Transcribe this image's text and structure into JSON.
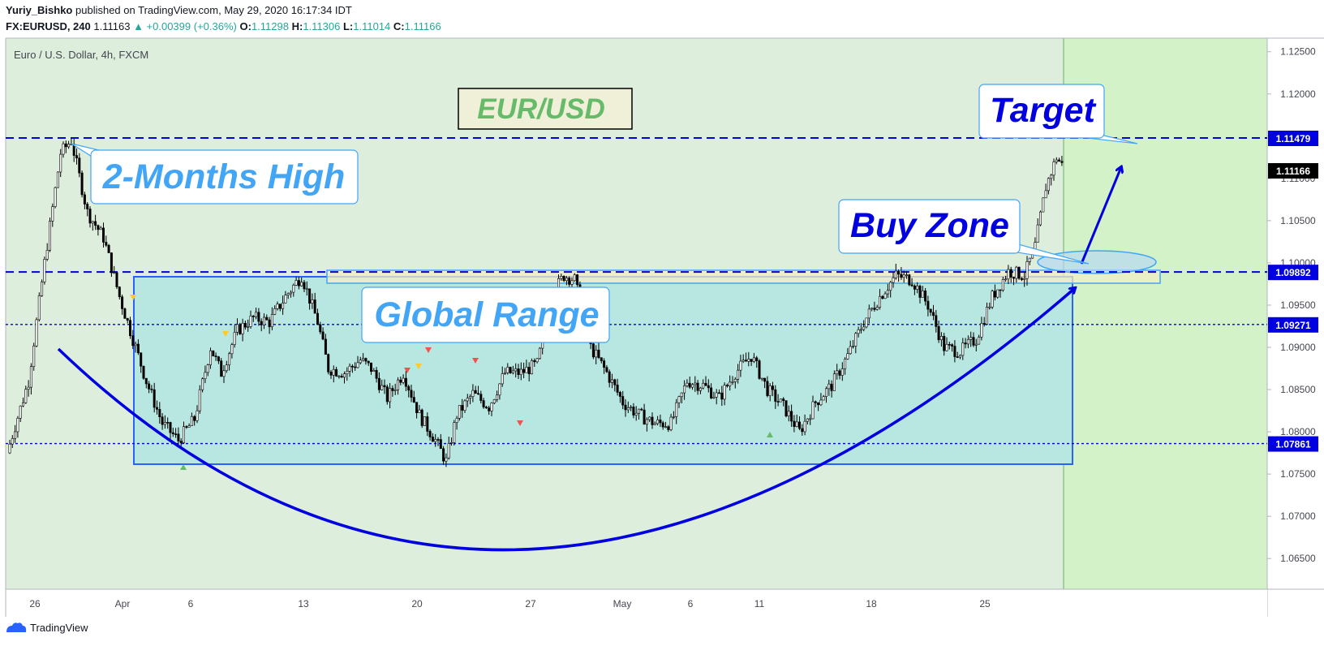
{
  "header": {
    "author": "Yuriy_Bishko",
    "published_text": "published on TradingView.com, May 29, 2020 16:17:34 IDT",
    "symbol": "FX:EURUSD, 240",
    "last": "1.11163",
    "change": "▲ +0.00399 (+0.36%)",
    "o_label": "O:",
    "o": "1.11298",
    "h_label": "H:",
    "h": "1.11306",
    "l_label": "L:",
    "l": "1.11014",
    "c_label": "C:",
    "c": "1.11166"
  },
  "footer": {
    "brand": "TradingView",
    "icon": "tradingview-logo-icon"
  },
  "colors": {
    "pane_bg": "#ddeedd",
    "future_bg": "#d4f2c8",
    "range_fill": "#b8e6e0",
    "annotation_blue": "#0000e0",
    "callout_text": "#42a5f5",
    "candle": "#000000",
    "price_label_bg": "#0000e0"
  },
  "chart_data": {
    "type": "candlestick",
    "title": "Euro / U.S. Dollar, 4h, FXCM",
    "badge": "EUR/USD",
    "xlabel": "",
    "ylabel": "",
    "ylim": [
      1.062,
      1.127
    ],
    "x_ticks": [
      "26",
      "Apr",
      "6",
      "13",
      "20",
      "27",
      "May",
      "6",
      "11",
      "18",
      "25"
    ],
    "y_ticks": [
      "1.12500",
      "1.12000",
      "1.11500",
      "1.11000",
      "1.10500",
      "1.10000",
      "1.09500",
      "1.09000",
      "1.08500",
      "1.08000",
      "1.07500",
      "1.07000",
      "1.06500"
    ],
    "grid": false,
    "horizontal_levels": [
      {
        "price": 1.11479,
        "label": "1.11479",
        "style": "dashed"
      },
      {
        "price": 1.09892,
        "label": "1.09892",
        "style": "dashed"
      },
      {
        "price": 1.09271,
        "label": "1.09271",
        "style": "dotted"
      },
      {
        "price": 1.07861,
        "label": "1.07861",
        "style": "dotted"
      }
    ],
    "last_price": {
      "price": 1.11166,
      "label": "1.11166"
    },
    "annotations": [
      "2-Months High",
      "Global Range",
      "Buy Zone",
      "Target"
    ],
    "path_points": [
      [
        0,
        1.0775
      ],
      [
        8,
        1.086
      ],
      [
        14,
        1.1
      ],
      [
        20,
        1.113
      ],
      [
        24,
        1.1145
      ],
      [
        30,
        1.106
      ],
      [
        36,
        1.103
      ],
      [
        42,
        1.096
      ],
      [
        48,
        1.09
      ],
      [
        52,
        1.086
      ],
      [
        58,
        1.081
      ],
      [
        64,
        1.079
      ],
      [
        70,
        1.0815
      ],
      [
        76,
        1.09
      ],
      [
        80,
        1.087
      ],
      [
        86,
        1.092
      ],
      [
        92,
        1.0935
      ],
      [
        98,
        1.093
      ],
      [
        104,
        1.096
      ],
      [
        110,
        1.0985
      ],
      [
        116,
        1.093
      ],
      [
        120,
        1.0875
      ],
      [
        126,
        1.087
      ],
      [
        132,
        1.0885
      ],
      [
        136,
        1.0875
      ],
      [
        142,
        1.084
      ],
      [
        148,
        1.087
      ],
      [
        154,
        1.082
      ],
      [
        160,
        1.079
      ],
      [
        164,
        1.0765
      ],
      [
        168,
        1.082
      ],
      [
        174,
        1.0845
      ],
      [
        180,
        1.083
      ],
      [
        186,
        1.087
      ],
      [
        192,
        1.087
      ],
      [
        198,
        1.088
      ],
      [
        204,
        1.0965
      ],
      [
        208,
        1.0985
      ],
      [
        212,
        1.098
      ],
      [
        218,
        1.09
      ],
      [
        224,
        1.087
      ],
      [
        230,
        1.0835
      ],
      [
        236,
        1.082
      ],
      [
        242,
        1.081
      ],
      [
        248,
        1.081
      ],
      [
        254,
        1.086
      ],
      [
        260,
        1.0855
      ],
      [
        266,
        1.084
      ],
      [
        272,
        1.087
      ],
      [
        278,
        1.089
      ],
      [
        284,
        1.085
      ],
      [
        290,
        1.083
      ],
      [
        296,
        1.08
      ],
      [
        302,
        1.0835
      ],
      [
        308,
        1.0855
      ],
      [
        314,
        1.089
      ],
      [
        320,
        1.093
      ],
      [
        326,
        1.096
      ],
      [
        332,
        1.0985
      ],
      [
        338,
        1.098
      ],
      [
        344,
        1.095
      ],
      [
        350,
        1.09
      ],
      [
        356,
        1.0895
      ],
      [
        362,
        1.091
      ],
      [
        368,
        1.096
      ],
      [
        374,
        1.099
      ],
      [
        380,
        1.0985
      ],
      [
        384,
        1.102
      ],
      [
        388,
        1.109
      ],
      [
        392,
        1.1125
      ],
      [
        394,
        1.1116
      ]
    ]
  }
}
